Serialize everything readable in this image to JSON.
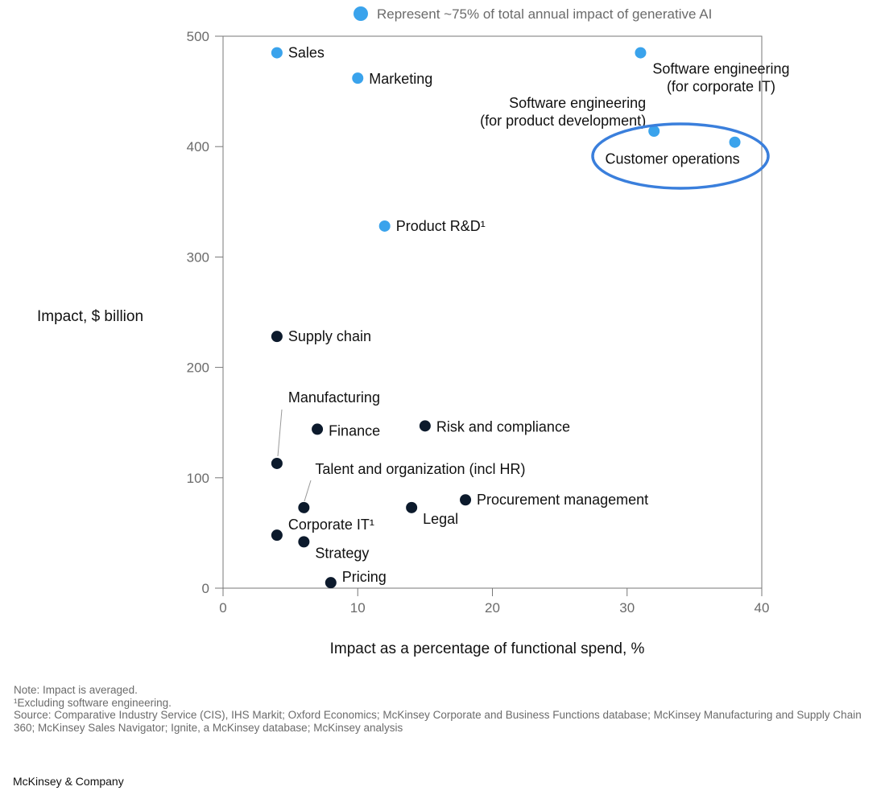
{
  "chart_data": {
    "type": "scatter",
    "xlabel": "Impact as a percentage of functional spend, %",
    "ylabel": "Impact, $ billion",
    "xlim": [
      0,
      40
    ],
    "ylim": [
      0,
      500
    ],
    "xticks": [
      0,
      10,
      20,
      30,
      40
    ],
    "yticks": [
      0,
      100,
      200,
      300,
      400,
      500
    ],
    "grid": false,
    "legend": {
      "label": "Represent ~75% of total annual impact of generative AI",
      "color": "#3aa3ec",
      "placement": "top"
    },
    "colors": {
      "highlight": "#3aa3ec",
      "other": "#0c1a2c",
      "circle": "#3a7fdc"
    },
    "points": [
      {
        "label": "Sales",
        "x": 4,
        "y": 485,
        "highlight": true
      },
      {
        "label": "Marketing",
        "x": 10,
        "y": 462,
        "highlight": true
      },
      {
        "label": "Software engineering\n(for corporate IT)",
        "x": 31,
        "y": 485,
        "highlight": true
      },
      {
        "label": "Software engineering\n(for product development)",
        "x": 32,
        "y": 414,
        "highlight": true
      },
      {
        "label": "Customer operations",
        "x": 38,
        "y": 404,
        "highlight": true,
        "circled": true
      },
      {
        "label": "Product R&D¹",
        "x": 12,
        "y": 328,
        "highlight": true
      },
      {
        "label": "Supply chain",
        "x": 4,
        "y": 228,
        "highlight": false
      },
      {
        "label": "Manufacturing",
        "x": 4,
        "y": 113,
        "highlight": false
      },
      {
        "label": "Finance",
        "x": 7,
        "y": 144,
        "highlight": false
      },
      {
        "label": "Risk and compliance",
        "x": 15,
        "y": 147,
        "highlight": false
      },
      {
        "label": "Talent and organization (incl HR)",
        "x": 6,
        "y": 73,
        "highlight": false
      },
      {
        "label": "Procurement management",
        "x": 18,
        "y": 80,
        "highlight": false
      },
      {
        "label": "Legal",
        "x": 14,
        "y": 73,
        "highlight": false
      },
      {
        "label": "Corporate IT¹",
        "x": 4,
        "y": 48,
        "highlight": false
      },
      {
        "label": "Strategy",
        "x": 6,
        "y": 42,
        "highlight": false
      },
      {
        "label": "Pricing",
        "x": 8,
        "y": 5,
        "highlight": false
      }
    ]
  },
  "ylabel_parts": {
    "bold": "Impact,",
    "rest": " $ billion"
  },
  "notes": {
    "note": "Note: Impact is averaged.",
    "footnote": "¹Excluding software engineering.",
    "source": "Source: Comparative Industry Service (CIS), IHS Markit; Oxford Economics; McKinsey Corporate and Business Functions database; McKinsey Manufacturing and Supply Chain 360; McKinsey Sales Navigator; Ignite, a McKinsey database; McKinsey analysis"
  },
  "brand": "McKinsey & Company"
}
